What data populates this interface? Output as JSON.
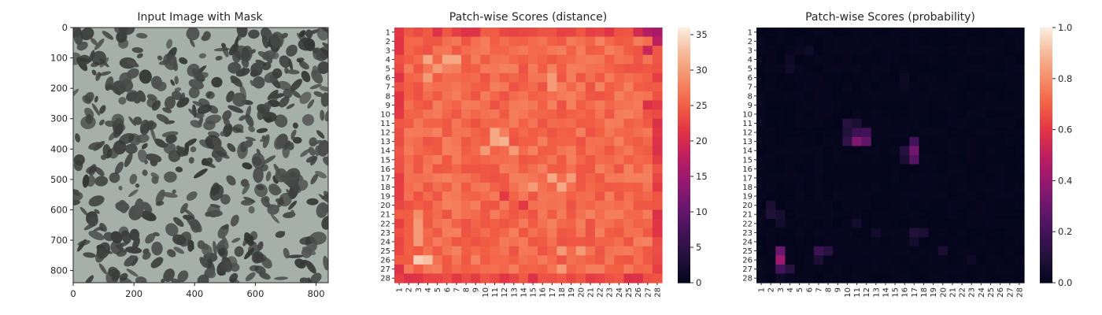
{
  "chart_data": [
    {
      "type": "image",
      "title": "Input Image with Mask",
      "xlim": [
        0,
        840
      ],
      "ylim": [
        840,
        0
      ],
      "xticks": [
        0,
        200,
        400,
        600,
        800
      ],
      "yticks": [
        0,
        100,
        200,
        300,
        400,
        500,
        600,
        700,
        800
      ],
      "colors": {
        "background": "#a5b0aa",
        "blotch": "#3c3f3e"
      }
    },
    {
      "type": "heatmap",
      "title": "Patch-wise Scores (distance)",
      "grid_size": 28,
      "row_labels": [
        "1",
        "2",
        "3",
        "4",
        "5",
        "6",
        "7",
        "8",
        "9",
        "10",
        "11",
        "12",
        "13",
        "14",
        "15",
        "16",
        "17",
        "18",
        "19",
        "20",
        "21",
        "22",
        "23",
        "24",
        "25",
        "26",
        "27",
        "28"
      ],
      "col_labels": [
        "1",
        "2",
        "3",
        "4",
        "5",
        "6",
        "7",
        "8",
        "9",
        "10",
        "11",
        "12",
        "13",
        "14",
        "15",
        "16",
        "17",
        "18",
        "19",
        "20",
        "21",
        "22",
        "23",
        "24",
        "25",
        "26",
        "27",
        "28"
      ],
      "vmin": 0,
      "vmax": 36,
      "colorbar_ticks": [
        0,
        5,
        10,
        15,
        20,
        25,
        30,
        35
      ],
      "base_value": 26,
      "border_value": 23,
      "cells": [
        [
          25,
          2,
          34
        ],
        [
          25,
          3,
          33
        ],
        [
          3,
          3,
          31
        ],
        [
          3,
          5,
          31
        ],
        [
          3,
          6,
          31
        ],
        [
          4,
          4,
          30
        ],
        [
          5,
          3,
          30
        ],
        [
          11,
          10,
          31
        ],
        [
          12,
          11,
          32
        ],
        [
          12,
          10,
          31
        ],
        [
          13,
          9,
          30
        ],
        [
          13,
          12,
          30
        ],
        [
          16,
          16,
          31
        ],
        [
          17,
          17,
          31
        ],
        [
          17,
          14,
          30
        ],
        [
          16,
          18,
          30
        ],
        [
          5,
          16,
          30
        ],
        [
          6,
          16,
          30
        ],
        [
          24,
          17,
          30
        ],
        [
          24,
          19,
          30
        ],
        [
          26,
          17,
          30
        ],
        [
          20,
          2,
          29
        ],
        [
          21,
          2,
          30
        ],
        [
          22,
          2,
          30
        ],
        [
          23,
          2,
          30
        ],
        [
          0,
          25,
          20
        ],
        [
          0,
          26,
          17
        ],
        [
          0,
          27,
          16
        ],
        [
          1,
          27,
          18
        ],
        [
          2,
          26,
          19
        ],
        [
          8,
          26,
          21
        ],
        [
          10,
          27,
          21
        ],
        [
          13,
          27,
          21
        ],
        [
          20,
          27,
          21
        ],
        [
          18,
          11,
          22
        ],
        [
          19,
          13,
          22
        ]
      ]
    },
    {
      "type": "heatmap",
      "title": "Patch-wise Scores (probability)",
      "grid_size": 28,
      "row_labels": [
        "1",
        "2",
        "3",
        "4",
        "5",
        "6",
        "7",
        "8",
        "9",
        "10",
        "11",
        "12",
        "13",
        "14",
        "15",
        "16",
        "17",
        "18",
        "19",
        "20",
        "21",
        "22",
        "23",
        "24",
        "25",
        "26",
        "27",
        "28"
      ],
      "col_labels": [
        "1",
        "2",
        "3",
        "4",
        "5",
        "6",
        "7",
        "8",
        "9",
        "10",
        "11",
        "12",
        "13",
        "14",
        "15",
        "16",
        "17",
        "18",
        "19",
        "20",
        "21",
        "22",
        "23",
        "24",
        "25",
        "26",
        "27",
        "28"
      ],
      "vmin": 0,
      "vmax": 1.0,
      "colorbar_ticks": [
        0.0,
        0.2,
        0.4,
        0.6,
        0.8,
        1.0
      ],
      "colorbar_tick_labels": [
        "0.0",
        "0.2",
        "0.4",
        "0.6",
        "0.8",
        "1.0"
      ],
      "base_value": 0.0,
      "cells": [
        [
          25,
          2,
          0.42
        ],
        [
          24,
          2,
          0.3
        ],
        [
          26,
          2,
          0.2
        ],
        [
          26,
          3,
          0.12
        ],
        [
          12,
          10,
          0.35
        ],
        [
          12,
          11,
          0.28
        ],
        [
          11,
          11,
          0.2
        ],
        [
          12,
          9,
          0.15
        ],
        [
          11,
          10,
          0.18
        ],
        [
          10,
          9,
          0.12
        ],
        [
          11,
          9,
          0.1
        ],
        [
          10,
          10,
          0.08
        ],
        [
          13,
          16,
          0.32
        ],
        [
          14,
          16,
          0.25
        ],
        [
          12,
          16,
          0.2
        ],
        [
          13,
          15,
          0.12
        ],
        [
          14,
          15,
          0.08
        ],
        [
          24,
          6,
          0.18
        ],
        [
          24,
          7,
          0.12
        ],
        [
          25,
          6,
          0.08
        ],
        [
          22,
          16,
          0.1
        ],
        [
          22,
          17,
          0.08
        ],
        [
          23,
          16,
          0.06
        ],
        [
          24,
          19,
          0.08
        ],
        [
          19,
          1,
          0.08
        ],
        [
          20,
          1,
          0.1
        ],
        [
          20,
          2,
          0.07
        ],
        [
          21,
          2,
          0.06
        ],
        [
          3,
          3,
          0.04
        ],
        [
          4,
          3,
          0.05
        ],
        [
          2,
          4,
          0.03
        ],
        [
          2,
          5,
          0.04
        ],
        [
          5,
          15,
          0.04
        ],
        [
          6,
          15,
          0.03
        ],
        [
          21,
          10,
          0.06
        ],
        [
          22,
          12,
          0.05
        ],
        [
          27,
          2,
          0.04
        ],
        [
          25,
          22,
          0.04
        ]
      ]
    }
  ]
}
